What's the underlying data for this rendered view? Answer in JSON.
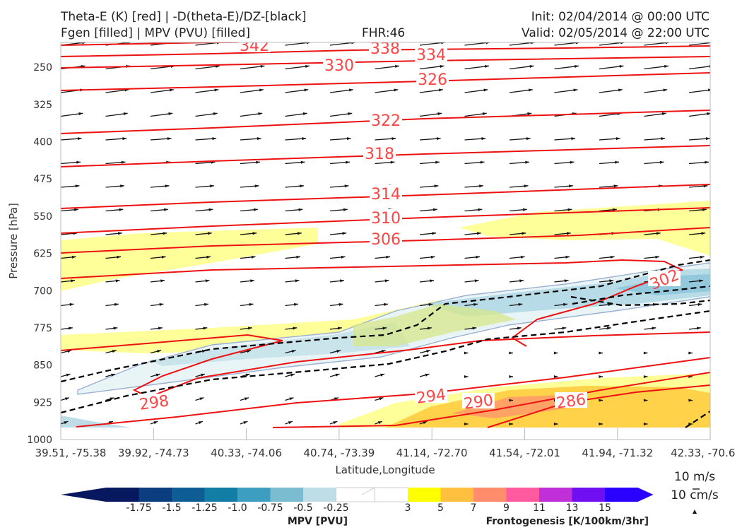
{
  "header": {
    "title_line1": "Theta-E (K) [red] | -D(theta-E)/DZ-[black]",
    "title_line2": "Fgen [filled] | MPV (PVU) [filled]",
    "fhr": "FHR:46",
    "init": "Init: 02/04/2014 @ 00:00 UTC",
    "valid": "Valid: 02/05/2014 @ 22:00 UTC"
  },
  "chart_data": {
    "type": "cross-section",
    "xlabel": "Latitude,Longitude",
    "ylabel": "Pressure [hPa]",
    "x_ticks": [
      "39.51, -75.38",
      "39.92, -74.73",
      "40.33, -74.06",
      "40.74, -73.39",
      "41.14, -72.70",
      "41.54, -72.01",
      "41.94, -71.32",
      "42.33, -70.6"
    ],
    "y_ticks": [
      250,
      325,
      400,
      475,
      550,
      625,
      700,
      775,
      850,
      925,
      1000
    ],
    "ylim": [
      1000,
      200
    ],
    "theta_e_contour_labels": [
      "342",
      "338",
      "334",
      "330",
      "326",
      "322",
      "318",
      "314",
      "310",
      "306",
      "302",
      "298",
      "294",
      "290",
      "286"
    ],
    "colors": {
      "theta_e": "#ee1111",
      "theta_e_label": "#ff4444",
      "instability": "#000000",
      "vectors": "#111111"
    },
    "mpv_colorbar": {
      "title": "MPV [PVU]",
      "ticks": [
        "-1.75",
        "-1.5",
        "-1.25",
        "-1.0",
        "-0.75",
        "-0.5",
        "-0.25"
      ],
      "colors": [
        "#08185e",
        "#0b3e80",
        "#0e5d94",
        "#127ea6",
        "#3e9ec0",
        "#7bbcd2",
        "#bfdde6",
        "#ffffff"
      ]
    },
    "fgen_colorbar": {
      "title": "Frontogenesis [K/100km/3hr]",
      "ticks": [
        "3",
        "5",
        "7",
        "9",
        "11",
        "13",
        "15"
      ],
      "colors": [
        "#ffffff",
        "#ffff00",
        "#ffc040",
        "#ff8c6a",
        "#ff5aa0",
        "#c030d8",
        "#7010f0",
        "#2a00ff"
      ]
    },
    "reference_vectors": [
      "10 m/s",
      "10 cm/s"
    ]
  }
}
